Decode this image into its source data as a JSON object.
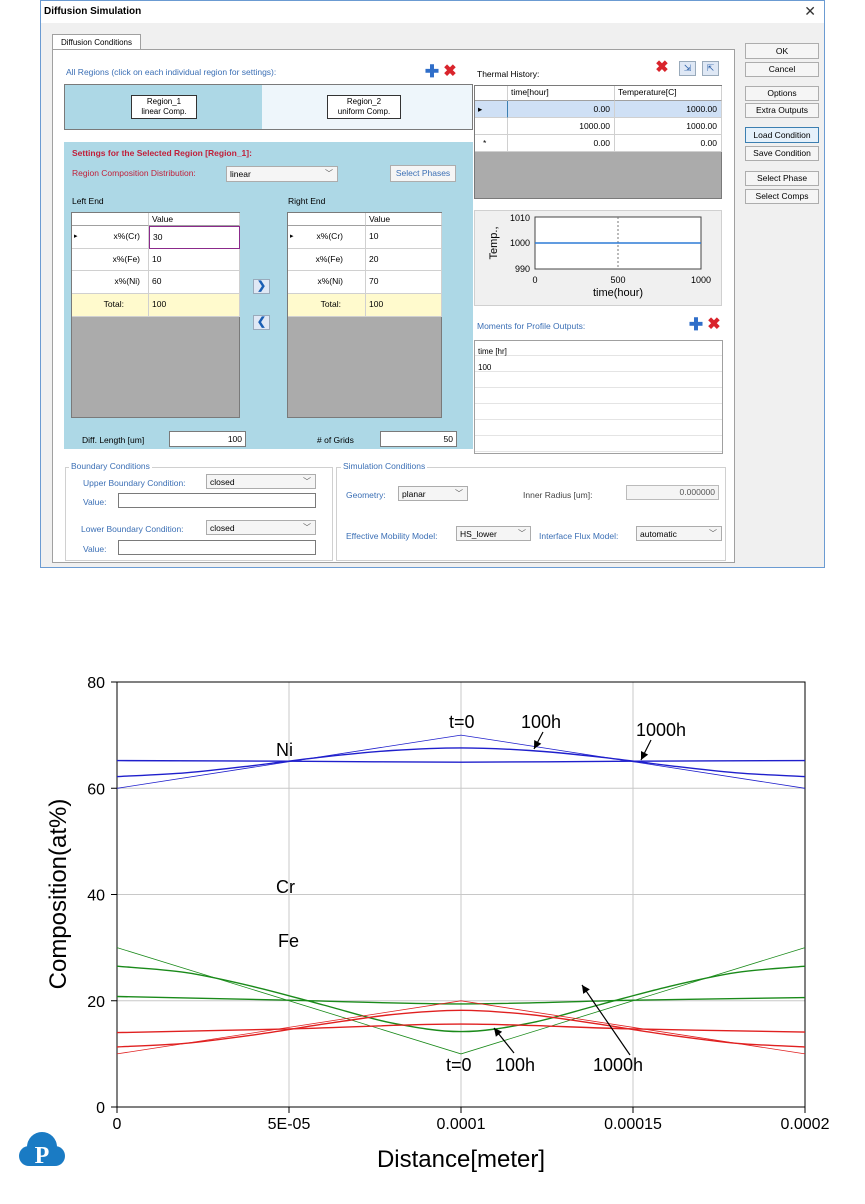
{
  "window": {
    "title": "Diffusion Simulation",
    "close_glyph": "✕"
  },
  "tab": {
    "label": "Diffusion Conditions"
  },
  "regions": {
    "heading": "All Regions (click on each individual region for settings):",
    "items": [
      {
        "line1": "Region_1",
        "line2": "linear Comp."
      },
      {
        "line1": "Region_2",
        "line2": "uniform Comp."
      }
    ]
  },
  "settings": {
    "title": "Settings for the Selected Region [Region_1]:",
    "dist_label": "Region Composition Distribution:",
    "dist_value": "linear",
    "select_phases": "Select Phases",
    "left_end": "Left End",
    "right_end": "Right End",
    "value_header": "Value",
    "left_rows": [
      {
        "name": "x%(Cr)",
        "value": "30"
      },
      {
        "name": "x%(Fe)",
        "value": "10"
      },
      {
        "name": "x%(Ni)",
        "value": "60"
      },
      {
        "name": "Total:",
        "value": "100"
      }
    ],
    "right_rows": [
      {
        "name": "x%(Cr)",
        "value": "10"
      },
      {
        "name": "x%(Fe)",
        "value": "20"
      },
      {
        "name": "x%(Ni)",
        "value": "70"
      },
      {
        "name": "Total:",
        "value": "100"
      }
    ],
    "diff_length_label": "Diff. Length [um]",
    "diff_length_value": "100",
    "grids_label": "# of Grids",
    "grids_value": "50"
  },
  "thermal": {
    "label": "Thermal History:",
    "col_time": "time[hour]",
    "col_temp": "Temperature[C]",
    "rows": [
      {
        "marker": "▸",
        "time": "0.00",
        "temp": "1000.00"
      },
      {
        "marker": "",
        "time": "1000.00",
        "temp": "1000.00"
      },
      {
        "marker": "*",
        "time": "0.00",
        "temp": "0.00"
      }
    ],
    "mini_chart": {
      "ylabel": "Temp.,",
      "xlabel": "time(hour)",
      "yticks": [
        "1010",
        "1000",
        "990"
      ],
      "xticks": [
        "0",
        "500",
        "1000"
      ],
      "x": [
        0,
        1000
      ],
      "y": [
        1000,
        1000
      ],
      "ylim": [
        990,
        1010
      ],
      "xlim": [
        0,
        1000
      ]
    }
  },
  "moments": {
    "label": "Moments for Profile Outputs:",
    "header": "time [hr]",
    "values": [
      "100"
    ]
  },
  "side_buttons": [
    "OK",
    "Cancel",
    "Options",
    "Extra Outputs",
    "Load Condition",
    "Save Condition",
    "Select Phase",
    "Select Comps"
  ],
  "boundary": {
    "title": "Boundary Conditions",
    "upper_label": "Upper Boundary Condition:",
    "upper_value": "closed",
    "lower_label": "Lower Boundary Condition:",
    "lower_value": "closed",
    "value_label": "Value:"
  },
  "simulation": {
    "title": "Simulation Conditions",
    "geometry_label": "Geometry:",
    "geometry_value": "planar",
    "radius_label": "Inner Radius [um]:",
    "radius_value": "0.000000",
    "mobility_label": "Effective Mobility Model:",
    "mobility_value": "HS_lower",
    "flux_label": "Interface Flux Model:",
    "flux_value": "automatic"
  },
  "chart_data": {
    "type": "line",
    "xlabel": "Distance[meter]",
    "ylabel": "Composition(at%)",
    "xlim": [
      0,
      0.0002
    ],
    "ylim": [
      0,
      80
    ],
    "xticks": [
      "0",
      "5E-05",
      "0.0001",
      "0.00015",
      "0.0002"
    ],
    "yticks": [
      "0",
      "20",
      "40",
      "60",
      "80"
    ],
    "grid": "on",
    "colors": {
      "Ni": "#1f1fcc",
      "Cr": "#1a8a1a",
      "Fe": "#e02020"
    },
    "series": [
      {
        "name": "Ni",
        "time": "0",
        "x": [
          0,
          0.0001,
          0.0002
        ],
        "y": [
          60,
          70,
          60
        ]
      },
      {
        "name": "Ni",
        "time": "100h",
        "x": [
          0,
          2e-05,
          4e-05,
          6e-05,
          8e-05,
          0.0001,
          0.00012,
          0.00014,
          0.00016,
          0.00018,
          0.0002
        ],
        "y": [
          62.2,
          62.9,
          64.3,
          65.9,
          67.1,
          67.6,
          67.1,
          65.9,
          64.3,
          62.9,
          62.2
        ]
      },
      {
        "name": "Ni",
        "time": "1000h",
        "x": [
          0,
          5e-05,
          0.0001,
          0.00015,
          0.0002
        ],
        "y": [
          65.2,
          65.1,
          64.9,
          65.1,
          65.2
        ]
      },
      {
        "name": "Cr",
        "time": "0",
        "x": [
          0,
          0.0001,
          0.0002
        ],
        "y": [
          30,
          10,
          30
        ]
      },
      {
        "name": "Cr",
        "time": "100h",
        "x": [
          0,
          2e-05,
          4e-05,
          6e-05,
          8e-05,
          0.0001,
          0.00012,
          0.00014,
          0.00016,
          0.00018,
          0.0002
        ],
        "y": [
          26.5,
          25.3,
          22.6,
          19.2,
          15.8,
          14.2,
          15.8,
          19.2,
          22.6,
          25.3,
          26.5
        ]
      },
      {
        "name": "Cr",
        "time": "1000h",
        "x": [
          0,
          5e-05,
          0.0001,
          0.00015,
          0.0002
        ],
        "y": [
          20.8,
          20.1,
          19.4,
          20.1,
          20.6
        ]
      },
      {
        "name": "Fe",
        "time": "0",
        "x": [
          0,
          0.0001,
          0.0002
        ],
        "y": [
          10,
          20,
          10
        ]
      },
      {
        "name": "Fe",
        "time": "100h",
        "x": [
          0,
          2e-05,
          4e-05,
          6e-05,
          8e-05,
          0.0001,
          0.00012,
          0.00014,
          0.00016,
          0.00018,
          0.0002
        ],
        "y": [
          11.3,
          12.0,
          13.6,
          15.6,
          17.4,
          18.2,
          17.4,
          15.6,
          13.6,
          12.0,
          11.3
        ]
      },
      {
        "name": "Fe",
        "time": "1000h",
        "x": [
          0,
          5e-05,
          0.0001,
          0.00015,
          0.0002
        ],
        "y": [
          14.0,
          14.7,
          15.6,
          14.7,
          14.1
        ]
      }
    ],
    "annotations": [
      {
        "text": "Ni"
      },
      {
        "text": "t=0"
      },
      {
        "text": "100h"
      },
      {
        "text": "1000h"
      },
      {
        "text": "Cr"
      },
      {
        "text": "Fe"
      },
      {
        "text": "t=0"
      },
      {
        "text": "100h"
      },
      {
        "text": "1000h"
      }
    ]
  },
  "logo": {
    "letter": "P",
    "color": "#1a7bc4"
  }
}
